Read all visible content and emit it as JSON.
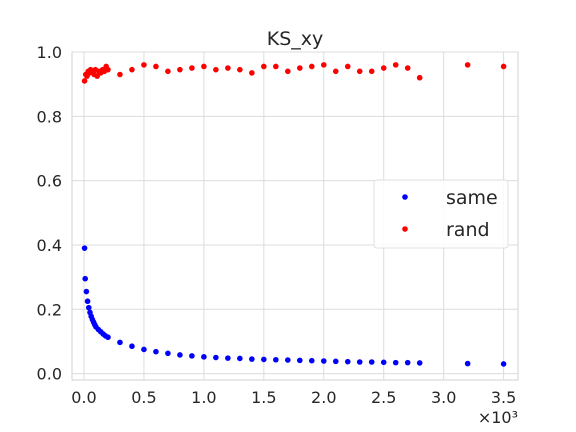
{
  "chart_data": {
    "type": "scatter",
    "title": "KS_xy",
    "xlabel": "",
    "ylabel": "",
    "xlim": [
      -100,
      3620
    ],
    "ylim": [
      -0.02,
      1.0
    ],
    "x_ticks": [
      0,
      500,
      1000,
      1500,
      2000,
      2500,
      3000,
      3500
    ],
    "x_tick_labels": [
      "0.0",
      "0.5",
      "1.0",
      "1.5",
      "2.0",
      "2.5",
      "3.0",
      "3.5"
    ],
    "x_offset_label": "×10³",
    "y_ticks": [
      0.0,
      0.2,
      0.4,
      0.6,
      0.8,
      1.0
    ],
    "y_tick_labels": [
      "0.0",
      "0.2",
      "0.4",
      "0.6",
      "0.8",
      "1.0"
    ],
    "grid": true,
    "legend_position": "center-right",
    "series": [
      {
        "name": "same",
        "color": "#0000ff",
        "points": [
          [
            5,
            0.39
          ],
          [
            10,
            0.295
          ],
          [
            20,
            0.255
          ],
          [
            30,
            0.225
          ],
          [
            40,
            0.205
          ],
          [
            50,
            0.19
          ],
          [
            60,
            0.178
          ],
          [
            70,
            0.168
          ],
          [
            80,
            0.16
          ],
          [
            90,
            0.152
          ],
          [
            100,
            0.145
          ],
          [
            120,
            0.137
          ],
          [
            140,
            0.13
          ],
          [
            160,
            0.123
          ],
          [
            180,
            0.117
          ],
          [
            200,
            0.113
          ],
          [
            300,
            0.097
          ],
          [
            400,
            0.085
          ],
          [
            500,
            0.075
          ],
          [
            600,
            0.068
          ],
          [
            700,
            0.063
          ],
          [
            800,
            0.058
          ],
          [
            900,
            0.055
          ],
          [
            1000,
            0.052
          ],
          [
            1100,
            0.05
          ],
          [
            1200,
            0.048
          ],
          [
            1300,
            0.047
          ],
          [
            1400,
            0.045
          ],
          [
            1500,
            0.044
          ],
          [
            1600,
            0.043
          ],
          [
            1700,
            0.042
          ],
          [
            1800,
            0.041
          ],
          [
            1900,
            0.04
          ],
          [
            2000,
            0.039
          ],
          [
            2100,
            0.038
          ],
          [
            2200,
            0.037
          ],
          [
            2300,
            0.036
          ],
          [
            2400,
            0.036
          ],
          [
            2500,
            0.035
          ],
          [
            2600,
            0.034
          ],
          [
            2700,
            0.034
          ],
          [
            2800,
            0.033
          ],
          [
            3200,
            0.031
          ],
          [
            3500,
            0.03
          ]
        ]
      },
      {
        "name": "rand",
        "color": "#ff0000",
        "points": [
          [
            5,
            0.91
          ],
          [
            15,
            0.93
          ],
          [
            25,
            0.925
          ],
          [
            35,
            0.94
          ],
          [
            45,
            0.935
          ],
          [
            55,
            0.945
          ],
          [
            65,
            0.94
          ],
          [
            75,
            0.935
          ],
          [
            85,
            0.93
          ],
          [
            95,
            0.945
          ],
          [
            110,
            0.925
          ],
          [
            125,
            0.94
          ],
          [
            140,
            0.935
          ],
          [
            155,
            0.945
          ],
          [
            170,
            0.94
          ],
          [
            185,
            0.955
          ],
          [
            200,
            0.945
          ],
          [
            300,
            0.93
          ],
          [
            400,
            0.945
          ],
          [
            500,
            0.96
          ],
          [
            600,
            0.955
          ],
          [
            700,
            0.94
          ],
          [
            800,
            0.945
          ],
          [
            900,
            0.95
          ],
          [
            1000,
            0.955
          ],
          [
            1100,
            0.945
          ],
          [
            1200,
            0.95
          ],
          [
            1300,
            0.945
          ],
          [
            1400,
            0.935
          ],
          [
            1500,
            0.955
          ],
          [
            1600,
            0.955
          ],
          [
            1700,
            0.94
          ],
          [
            1800,
            0.95
          ],
          [
            1900,
            0.955
          ],
          [
            2000,
            0.96
          ],
          [
            2100,
            0.94
          ],
          [
            2200,
            0.955
          ],
          [
            2300,
            0.94
          ],
          [
            2400,
            0.94
          ],
          [
            2500,
            0.95
          ],
          [
            2600,
            0.96
          ],
          [
            2700,
            0.95
          ],
          [
            2800,
            0.92
          ],
          [
            3200,
            0.96
          ],
          [
            3500,
            0.955
          ]
        ]
      }
    ]
  }
}
